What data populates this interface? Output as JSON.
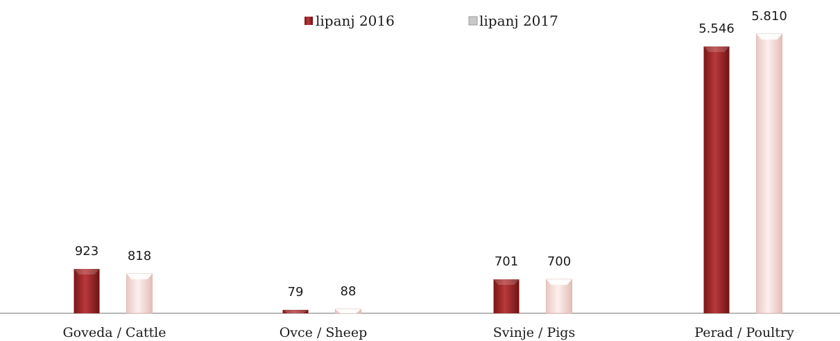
{
  "chart_data": {
    "type": "bar",
    "categories": [
      "Goveda / Cattle",
      "Ovce / Sheep",
      "Svinje / Pigs",
      "Perad / Poultry"
    ],
    "series": [
      {
        "name": "lipanj 2016",
        "values": [
          923,
          79,
          701,
          5546
        ],
        "labels": [
          "923",
          "79",
          "701",
          "5.546"
        ],
        "color": "#a6282a"
      },
      {
        "name": "lipanj 2017",
        "values": [
          818,
          88,
          700,
          5810
        ],
        "labels": [
          "818",
          "88",
          "700",
          "5.810"
        ],
        "color": "#f9e3e0"
      }
    ],
    "ylim": [
      0,
      5810
    ],
    "grid": false,
    "legend_position": "top-center",
    "axis_color": "#8c8c8c"
  }
}
